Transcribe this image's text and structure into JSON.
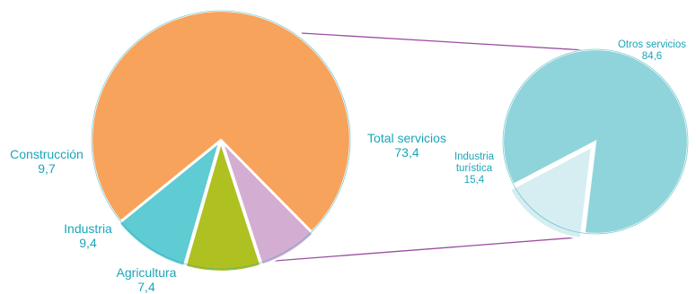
{
  "chart_data": [
    {
      "type": "pie",
      "slices": [
        {
          "label": "Total servicios",
          "value": 73.4,
          "display": "73,4",
          "color": "#f7a35c"
        },
        {
          "label": "Agricultura",
          "value": 7.4,
          "display": "7,4",
          "color": "#d4aed2"
        },
        {
          "label": "Industria",
          "value": 9.4,
          "display": "9,4",
          "color": "#afc021"
        },
        {
          "label": "Construcción",
          "value": 9.7,
          "display": "9,7",
          "color": "#5fcbd3"
        }
      ],
      "exploded": [
        "Agricultura",
        "Industria",
        "Construcción"
      ],
      "connector_color": "#9b4ea0"
    },
    {
      "type": "pie",
      "slices": [
        {
          "label": "Otros servicios",
          "value": 84.6,
          "display": "84,6",
          "color": "#8fd4da"
        },
        {
          "label": "Industria turística",
          "label_lines": [
            "Industria",
            "turística"
          ],
          "value": 15.4,
          "display": "15,4",
          "color": "#d6eef2"
        }
      ],
      "exploded": [
        "Industria turística"
      ]
    }
  ]
}
